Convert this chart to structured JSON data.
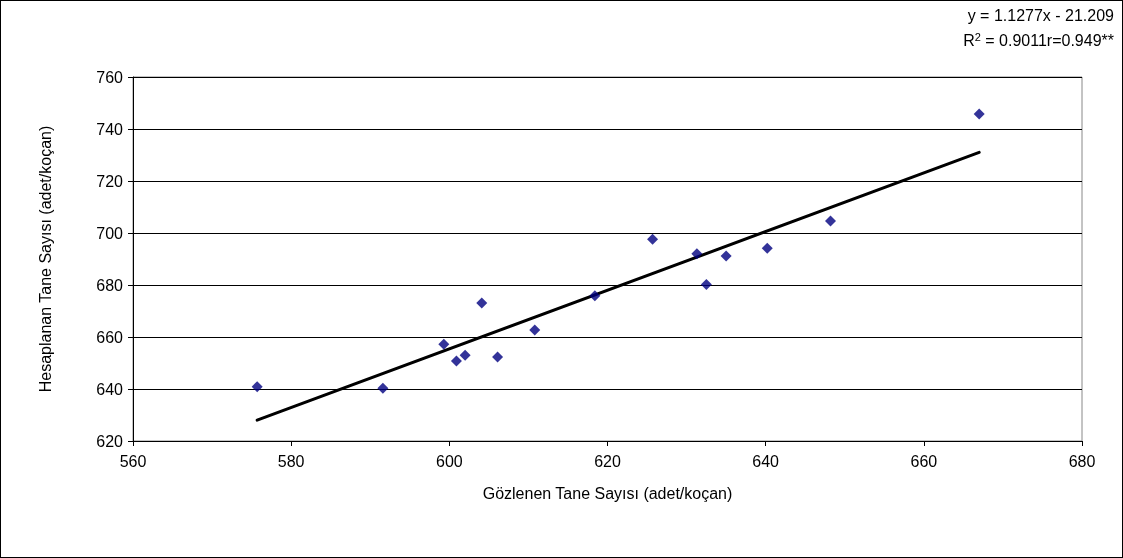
{
  "chart_data": {
    "type": "scatter",
    "xlabel": "Gözlenen Tane Sayısı (adet/koçan)",
    "ylabel": "Hesaplanan Tane Sayısı (adet/koçan)",
    "annotations": [
      "y = 1.1277x - 21.209",
      "R$^{2}$ = 0.9011r=0.949**"
    ],
    "series": [
      {
        "color": "#000080",
        "marker": "diamond",
        "x": [
          575.7,
          591.6,
          599.3,
          600.9,
          602.0,
          604.1,
          606.1,
          610.8,
          618.4,
          625.7,
          631.3,
          632.5,
          635.0,
          640.2,
          648.2,
          667.0
        ],
        "values": [
          640.9,
          640.3,
          657.2,
          650.8,
          653.0,
          673.1,
          652.3,
          662.7,
          675.9,
          697.6,
          692.0,
          680.2,
          691.2,
          694.1,
          704.6,
          745.8
        ]
      },
      {
        "type": "line",
        "color": "#000000",
        "marker": "none",
        "x": [
          575.7,
          667.0
        ],
        "values": [
          628.0,
          731.0
        ]
      }
    ],
    "xlim": [
      560,
      680
    ],
    "xticks": [
      560,
      580,
      600,
      620,
      640,
      660,
      680
    ],
    "ylim": [
      620,
      760
    ],
    "yticks": [
      620,
      640,
      660,
      680,
      700,
      720,
      740,
      760
    ],
    "grid": "y"
  }
}
